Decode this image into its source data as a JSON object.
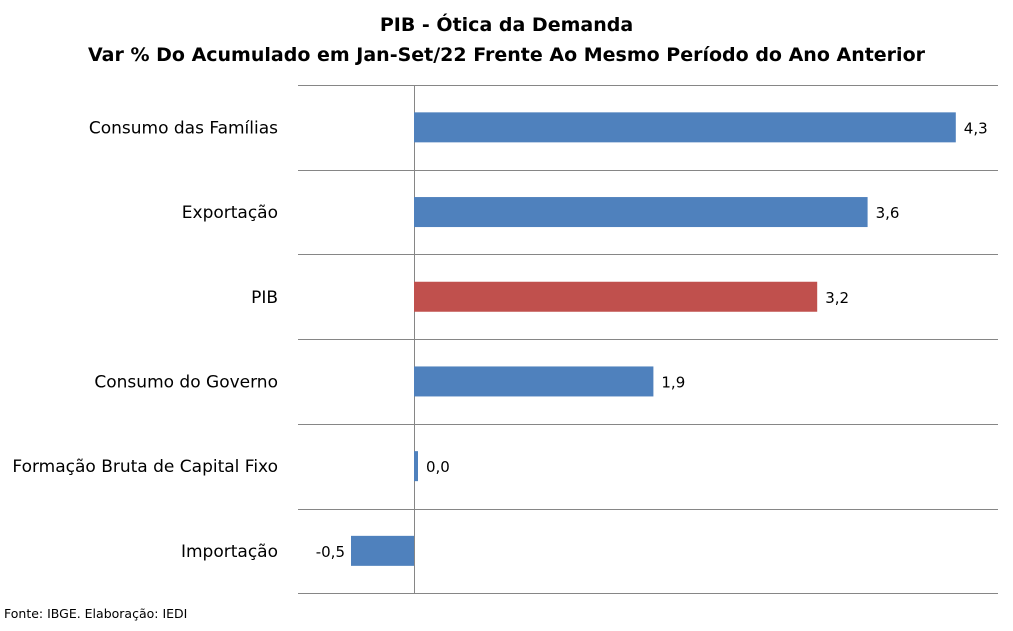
{
  "title": "PIB - Ótica da Demanda",
  "subtitle": "Var % Do Acumulado em Jan-Set/22 Frente Ao Mesmo Período do Ano Anterior",
  "source": "Fonte: IBGE. Elaboração: IEDI",
  "colors": {
    "default_bar": "#4f81bd",
    "highlight_bar": "#c0504d",
    "gridline": "#868686"
  },
  "chart_data": {
    "type": "bar",
    "orientation": "horizontal",
    "title": "PIB - Ótica da Demanda",
    "subtitle": "Var % Do Acumulado em Jan-Set/22 Frente Ao Mesmo Período do Ano Anterior",
    "categories": [
      "Consumo das Famílias",
      "Exportação",
      "PIB",
      "Consumo do Governo",
      "Formação Bruta de Capital Fixo",
      "Importação"
    ],
    "values": [
      4.3,
      3.6,
      3.2,
      1.9,
      0.0,
      -0.5
    ],
    "value_labels": [
      "4,3",
      "3,6",
      "3,2",
      "1,9",
      "0,0",
      "-0,5"
    ],
    "highlight_category": "PIB",
    "xlim": [
      -1.0,
      4.5
    ],
    "grid": true,
    "legend": "none"
  }
}
